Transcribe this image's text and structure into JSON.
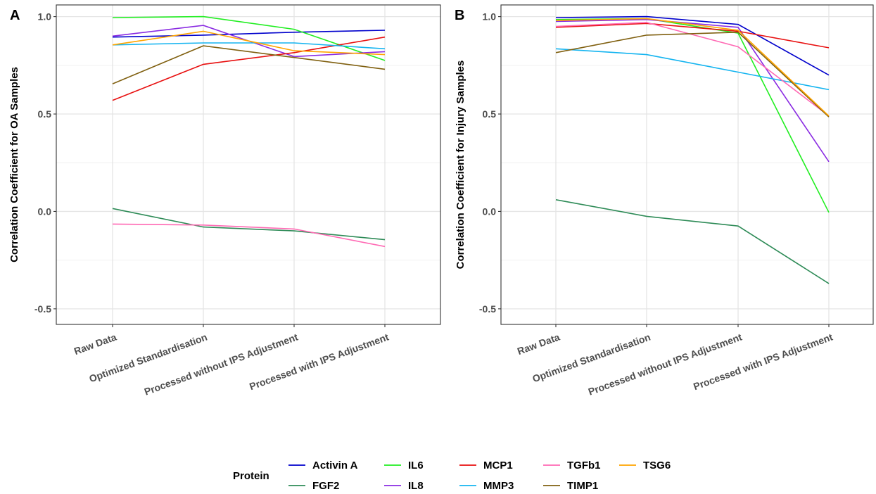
{
  "legend": {
    "title": "Protein"
  },
  "chart_data": [
    {
      "panel": "A",
      "type": "line",
      "xlabel": "",
      "ylabel": "Correlation Coefficient for OA Samples",
      "categories": [
        "Raw Data",
        "Optimized Standardisation",
        "Processed without IPS Adjustment",
        "Processed with IPS Adjustment"
      ],
      "ylim": [
        -0.58,
        1.06
      ],
      "yticks": [
        -0.5,
        0.0,
        0.5,
        1.0
      ],
      "ytick_labels": [
        "-0.5",
        "0.0",
        "0.5",
        "1.0"
      ],
      "grid": true,
      "series": [
        {
          "name": "Activin A",
          "color": "#0000CC",
          "values": [
            0.895,
            0.905,
            0.92,
            0.93
          ]
        },
        {
          "name": "FGF2",
          "color": "#2E8B57",
          "values": [
            0.015,
            -0.08,
            -0.1,
            -0.145
          ]
        },
        {
          "name": "IL6",
          "color": "#22EE22",
          "values": [
            0.995,
            1.0,
            0.935,
            0.775
          ]
        },
        {
          "name": "IL8",
          "color": "#8A2BE2",
          "values": [
            0.9,
            0.955,
            0.795,
            0.82
          ]
        },
        {
          "name": "MCP1",
          "color": "#E81010",
          "values": [
            0.57,
            0.755,
            0.815,
            0.895
          ]
        },
        {
          "name": "MMP3",
          "color": "#14B4F0",
          "values": [
            0.855,
            0.865,
            0.865,
            0.835
          ]
        },
        {
          "name": "TGFb1",
          "color": "#FF69B4",
          "values": [
            -0.065,
            -0.07,
            -0.09,
            -0.18
          ]
        },
        {
          "name": "TIMP1",
          "color": "#806010",
          "values": [
            0.655,
            0.85,
            0.79,
            0.73
          ]
        },
        {
          "name": "TSG6",
          "color": "#FFA500",
          "values": [
            0.855,
            0.925,
            0.825,
            0.805
          ]
        }
      ]
    },
    {
      "panel": "B",
      "type": "line",
      "xlabel": "",
      "ylabel": "Correlation Coefficient for Injury Samples",
      "categories": [
        "Raw Data",
        "Optimized Standardisation",
        "Processed without IPS Adjustment",
        "Processed with IPS Adjustment"
      ],
      "ylim": [
        -0.58,
        1.06
      ],
      "yticks": [
        -0.5,
        0.0,
        0.5,
        1.0
      ],
      "ytick_labels": [
        "-0.5",
        "0.0",
        "0.5",
        "1.0"
      ],
      "grid": true,
      "series": [
        {
          "name": "Activin A",
          "color": "#0000CC",
          "values": [
            0.995,
            1.0,
            0.96,
            0.7
          ]
        },
        {
          "name": "FGF2",
          "color": "#2E8B57",
          "values": [
            0.06,
            -0.025,
            -0.075,
            -0.37
          ]
        },
        {
          "name": "IL6",
          "color": "#22EE22",
          "values": [
            0.985,
            0.99,
            0.915,
            -0.005
          ]
        },
        {
          "name": "IL8",
          "color": "#8A2BE2",
          "values": [
            0.975,
            0.985,
            0.945,
            0.255
          ]
        },
        {
          "name": "MCP1",
          "color": "#E81010",
          "values": [
            0.945,
            0.965,
            0.925,
            0.84
          ]
        },
        {
          "name": "MMP3",
          "color": "#14B4F0",
          "values": [
            0.835,
            0.805,
            0.715,
            0.625
          ]
        },
        {
          "name": "TGFb1",
          "color": "#FF69B4",
          "values": [
            0.95,
            0.97,
            0.845,
            0.49
          ]
        },
        {
          "name": "TIMP1",
          "color": "#806010",
          "values": [
            0.815,
            0.905,
            0.92,
            0.485
          ]
        },
        {
          "name": "TSG6",
          "color": "#FFA500",
          "values": [
            0.98,
            0.99,
            0.93,
            0.49
          ]
        }
      ]
    }
  ]
}
